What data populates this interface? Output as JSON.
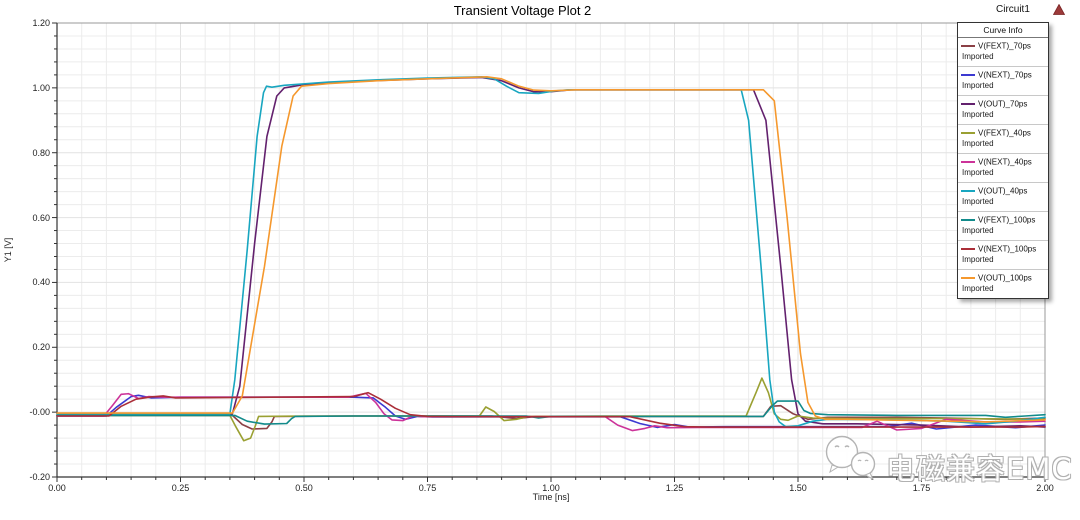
{
  "header": {
    "title": "Transient Voltage Plot 2",
    "context": "Circuit1"
  },
  "axes": {
    "x": {
      "label": "Time [ns]",
      "tick_values": [
        0,
        0.25,
        0.5,
        0.75,
        1.0,
        1.25,
        1.5,
        1.75,
        2.0
      ],
      "tick_labels": [
        "0.00",
        "0.25",
        "0.50",
        "0.75",
        "1.00",
        "1.25",
        "1.50",
        "1.75",
        "2.00"
      ],
      "minor_step": 0.05
    },
    "y": {
      "label": "Y1 [V]",
      "tick_values": [
        1.2,
        1.0,
        0.8,
        0.6,
        0.4,
        0.2,
        0.0,
        -0.2
      ],
      "tick_labels": [
        "1.20",
        "1.00",
        "0.80",
        "0.60",
        "0.40",
        "0.20",
        "-0.00",
        "-0.20"
      ],
      "minor_step": 0.04
    }
  },
  "legend": {
    "title": "Curve Info",
    "sub_label": "Imported"
  },
  "watermark": {
    "text": "电磁兼容EMC",
    "icon": "wechat-logo"
  },
  "colors": {
    "grid_minor": "#ececec",
    "grid_major": "#e2e2e2",
    "axis": "#333333",
    "border": "#9a9a9a"
  },
  "chart_data": {
    "type": "line",
    "title": "Transient Voltage Plot 2",
    "xlabel": "Time [ns]",
    "ylabel": "Y1 [V]",
    "xlim": [
      0,
      2
    ],
    "ylim": [
      -0.2,
      1.2
    ],
    "grid": true,
    "legend_position": "top-right",
    "series": [
      {
        "name": "V(FEXT)_70ps",
        "color": "#8b4045",
        "points": [
          [
            0,
            -0.01
          ],
          [
            0.355,
            -0.01
          ],
          [
            0.375,
            -0.038
          ],
          [
            0.395,
            -0.052
          ],
          [
            0.425,
            -0.05
          ],
          [
            0.435,
            -0.03
          ],
          [
            0.44,
            -0.013
          ],
          [
            0.6,
            -0.012
          ],
          [
            0.88,
            -0.012
          ],
          [
            0.93,
            -0.02
          ],
          [
            0.97,
            -0.013
          ],
          [
            1.43,
            -0.013
          ],
          [
            1.445,
            0.018
          ],
          [
            1.465,
            0.02
          ],
          [
            1.49,
            -0.005
          ],
          [
            1.52,
            -0.022
          ],
          [
            1.56,
            -0.016
          ],
          [
            1.7,
            -0.016
          ],
          [
            1.8,
            -0.018
          ],
          [
            1.92,
            -0.022
          ],
          [
            2.0,
            -0.018
          ]
        ]
      },
      {
        "name": "V(NEXT)_70ps",
        "color": "#3c39d1",
        "points": [
          [
            0,
            -0.012
          ],
          [
            0.1,
            -0.012
          ],
          [
            0.12,
            0.015
          ],
          [
            0.15,
            0.048
          ],
          [
            0.165,
            0.052
          ],
          [
            0.19,
            0.044
          ],
          [
            0.25,
            0.046
          ],
          [
            0.6,
            0.046
          ],
          [
            0.64,
            0.044
          ],
          [
            0.665,
            0.015
          ],
          [
            0.685,
            -0.012
          ],
          [
            0.705,
            -0.022
          ],
          [
            0.73,
            -0.013
          ],
          [
            0.76,
            -0.015
          ],
          [
            1.14,
            -0.014
          ],
          [
            1.18,
            -0.035
          ],
          [
            1.215,
            -0.047
          ],
          [
            1.25,
            -0.038
          ],
          [
            1.28,
            -0.046
          ],
          [
            1.35,
            -0.045
          ],
          [
            1.68,
            -0.045
          ],
          [
            1.73,
            -0.034
          ],
          [
            1.78,
            -0.052
          ],
          [
            1.86,
            -0.04
          ],
          [
            1.94,
            -0.048
          ],
          [
            2.0,
            -0.04
          ]
        ]
      },
      {
        "name": "V(OUT)_70ps",
        "color": "#63216e",
        "points": [
          [
            0,
            -0.005
          ],
          [
            0.355,
            -0.005
          ],
          [
            0.37,
            0.08
          ],
          [
            0.4,
            0.52
          ],
          [
            0.425,
            0.85
          ],
          [
            0.445,
            0.975
          ],
          [
            0.46,
            1.0
          ],
          [
            0.5,
            1.01
          ],
          [
            0.6,
            1.02
          ],
          [
            0.75,
            1.028
          ],
          [
            0.86,
            1.032
          ],
          [
            0.9,
            1.022
          ],
          [
            0.935,
            1.0
          ],
          [
            0.965,
            0.988
          ],
          [
            1.0,
            0.988
          ],
          [
            1.04,
            0.994
          ],
          [
            1.1,
            0.994
          ],
          [
            1.41,
            0.994
          ],
          [
            1.435,
            0.9
          ],
          [
            1.465,
            0.45
          ],
          [
            1.487,
            0.1
          ],
          [
            1.5,
            -0.005
          ],
          [
            1.515,
            -0.028
          ],
          [
            1.55,
            -0.036
          ],
          [
            1.62,
            -0.036
          ],
          [
            1.75,
            -0.04
          ],
          [
            1.85,
            -0.046
          ],
          [
            1.95,
            -0.042
          ],
          [
            2.0,
            -0.046
          ]
        ]
      },
      {
        "name": "V(FEXT)_40ps",
        "color": "#9aa032",
        "points": [
          [
            0,
            -0.01
          ],
          [
            0.35,
            -0.01
          ],
          [
            0.362,
            -0.045
          ],
          [
            0.378,
            -0.088
          ],
          [
            0.392,
            -0.08
          ],
          [
            0.402,
            -0.04
          ],
          [
            0.408,
            -0.013
          ],
          [
            0.5,
            -0.012
          ],
          [
            0.855,
            -0.012
          ],
          [
            0.868,
            0.016
          ],
          [
            0.885,
            0.002
          ],
          [
            0.905,
            -0.026
          ],
          [
            0.93,
            -0.022
          ],
          [
            0.955,
            -0.013
          ],
          [
            1.1,
            -0.012
          ],
          [
            1.395,
            -0.012
          ],
          [
            1.415,
            0.06
          ],
          [
            1.427,
            0.105
          ],
          [
            1.44,
            0.06
          ],
          [
            1.452,
            -0.005
          ],
          [
            1.465,
            -0.022
          ],
          [
            1.48,
            -0.025
          ],
          [
            1.5,
            -0.012
          ],
          [
            1.53,
            -0.018
          ],
          [
            1.6,
            -0.02
          ],
          [
            1.8,
            -0.02
          ],
          [
            2.0,
            -0.022
          ]
        ]
      },
      {
        "name": "V(NEXT)_40ps",
        "color": "#cc3399",
        "points": [
          [
            0,
            -0.012
          ],
          [
            0.095,
            -0.012
          ],
          [
            0.112,
            0.02
          ],
          [
            0.13,
            0.055
          ],
          [
            0.145,
            0.057
          ],
          [
            0.165,
            0.042
          ],
          [
            0.185,
            0.048
          ],
          [
            0.22,
            0.046
          ],
          [
            0.59,
            0.046
          ],
          [
            0.625,
            0.058
          ],
          [
            0.645,
            0.03
          ],
          [
            0.662,
            -0.005
          ],
          [
            0.678,
            -0.024
          ],
          [
            0.7,
            -0.026
          ],
          [
            0.72,
            -0.012
          ],
          [
            0.74,
            -0.014
          ],
          [
            1.11,
            -0.014
          ],
          [
            1.135,
            -0.04
          ],
          [
            1.165,
            -0.057
          ],
          [
            1.19,
            -0.05
          ],
          [
            1.21,
            -0.042
          ],
          [
            1.235,
            -0.048
          ],
          [
            1.3,
            -0.047
          ],
          [
            1.63,
            -0.047
          ],
          [
            1.66,
            -0.028
          ],
          [
            1.7,
            -0.055
          ],
          [
            1.75,
            -0.05
          ],
          [
            1.8,
            -0.022
          ],
          [
            1.88,
            -0.03
          ],
          [
            1.95,
            -0.03
          ],
          [
            2.0,
            -0.028
          ]
        ]
      },
      {
        "name": "V(OUT)_40ps",
        "color": "#18a6c0",
        "points": [
          [
            0,
            -0.005
          ],
          [
            0.35,
            -0.005
          ],
          [
            0.36,
            0.1
          ],
          [
            0.385,
            0.5
          ],
          [
            0.405,
            0.85
          ],
          [
            0.418,
            0.985
          ],
          [
            0.424,
            1.005
          ],
          [
            0.435,
            1.002
          ],
          [
            0.46,
            1.008
          ],
          [
            0.55,
            1.018
          ],
          [
            0.65,
            1.025
          ],
          [
            0.75,
            1.03
          ],
          [
            0.86,
            1.034
          ],
          [
            0.885,
            1.028
          ],
          [
            0.91,
            1.005
          ],
          [
            0.935,
            0.985
          ],
          [
            0.975,
            0.983
          ],
          [
            1.005,
            0.99
          ],
          [
            1.035,
            0.994
          ],
          [
            1.1,
            0.994
          ],
          [
            1.385,
            0.994
          ],
          [
            1.4,
            0.9
          ],
          [
            1.425,
            0.45
          ],
          [
            1.443,
            0.1
          ],
          [
            1.452,
            0.0
          ],
          [
            1.462,
            -0.03
          ],
          [
            1.475,
            -0.045
          ],
          [
            1.5,
            -0.042
          ],
          [
            1.53,
            -0.028
          ],
          [
            1.56,
            -0.022
          ],
          [
            1.7,
            -0.024
          ],
          [
            1.8,
            -0.028
          ],
          [
            1.88,
            -0.036
          ],
          [
            1.94,
            -0.028
          ],
          [
            2.0,
            -0.016
          ]
        ]
      },
      {
        "name": "V(FEXT)_100ps",
        "color": "#128b8b",
        "points": [
          [
            0,
            -0.01
          ],
          [
            0.36,
            -0.01
          ],
          [
            0.385,
            -0.028
          ],
          [
            0.42,
            -0.037
          ],
          [
            0.465,
            -0.035
          ],
          [
            0.475,
            -0.02
          ],
          [
            0.482,
            -0.013
          ],
          [
            0.6,
            -0.012
          ],
          [
            0.95,
            -0.012
          ],
          [
            0.975,
            -0.018
          ],
          [
            1.0,
            -0.013
          ],
          [
            1.43,
            -0.013
          ],
          [
            1.448,
            0.02
          ],
          [
            1.458,
            0.034
          ],
          [
            1.5,
            0.034
          ],
          [
            1.512,
            0.005
          ],
          [
            1.525,
            -0.004
          ],
          [
            1.56,
            -0.008
          ],
          [
            1.7,
            -0.01
          ],
          [
            1.88,
            -0.01
          ],
          [
            1.92,
            -0.016
          ],
          [
            1.96,
            -0.012
          ],
          [
            2.0,
            -0.008
          ]
        ]
      },
      {
        "name": "V(NEXT)_100ps",
        "color": "#ab2e38",
        "points": [
          [
            0,
            -0.012
          ],
          [
            0.105,
            -0.012
          ],
          [
            0.13,
            0.018
          ],
          [
            0.16,
            0.04
          ],
          [
            0.19,
            0.047
          ],
          [
            0.215,
            0.05
          ],
          [
            0.24,
            0.044
          ],
          [
            0.6,
            0.048
          ],
          [
            0.63,
            0.06
          ],
          [
            0.655,
            0.04
          ],
          [
            0.685,
            0.012
          ],
          [
            0.715,
            -0.008
          ],
          [
            0.75,
            -0.013
          ],
          [
            0.8,
            -0.014
          ],
          [
            1.16,
            -0.014
          ],
          [
            1.22,
            -0.034
          ],
          [
            1.27,
            -0.045
          ],
          [
            1.32,
            -0.046
          ],
          [
            1.95,
            -0.046
          ],
          [
            2.0,
            -0.044
          ]
        ]
      },
      {
        "name": "V(OUT)_100ps",
        "color": "#f5982d",
        "points": [
          [
            0,
            -0.003
          ],
          [
            0.355,
            -0.003
          ],
          [
            0.375,
            0.05
          ],
          [
            0.42,
            0.45
          ],
          [
            0.455,
            0.82
          ],
          [
            0.478,
            0.975
          ],
          [
            0.495,
            1.005
          ],
          [
            0.55,
            1.013
          ],
          [
            0.65,
            1.022
          ],
          [
            0.75,
            1.028
          ],
          [
            0.87,
            1.034
          ],
          [
            0.9,
            1.028
          ],
          [
            0.935,
            1.005
          ],
          [
            0.965,
            0.993
          ],
          [
            1.0,
            0.991
          ],
          [
            1.05,
            0.994
          ],
          [
            1.1,
            0.994
          ],
          [
            1.43,
            0.994
          ],
          [
            1.452,
            0.96
          ],
          [
            1.478,
            0.6
          ],
          [
            1.505,
            0.18
          ],
          [
            1.52,
            0.03
          ],
          [
            1.535,
            -0.012
          ],
          [
            1.555,
            -0.022
          ],
          [
            1.6,
            -0.022
          ],
          [
            1.75,
            -0.026
          ],
          [
            1.88,
            -0.03
          ],
          [
            2.0,
            -0.024
          ]
        ]
      }
    ]
  }
}
